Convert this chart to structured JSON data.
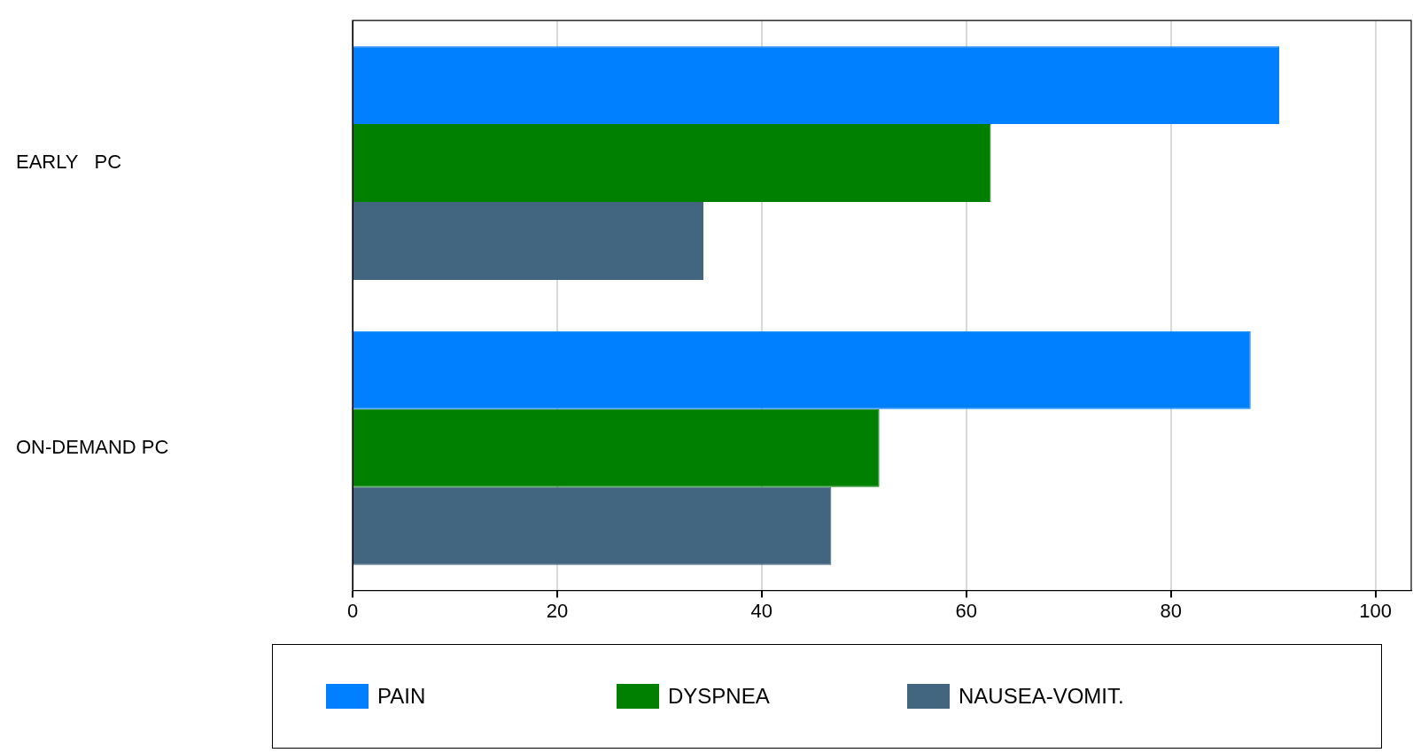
{
  "chart_data": {
    "type": "bar",
    "orientation": "horizontal",
    "categories": [
      "EARLY   PC",
      "ON-DEMAND PC"
    ],
    "series": [
      {
        "name": "PAIN",
        "color": "#0080ff",
        "values": [
          90.6,
          87.8
        ]
      },
      {
        "name": "DYSPNEA",
        "color": "#008000",
        "values": [
          62.4,
          51.5
        ]
      },
      {
        "name": "NAUSEA-VOMIT.",
        "color": "#426580",
        "values": [
          34.3,
          46.8
        ]
      }
    ],
    "xlim": [
      0,
      103.5
    ],
    "xticks": [
      0,
      20,
      40,
      60,
      80,
      100
    ],
    "grid": "x",
    "legend": "bottom"
  }
}
